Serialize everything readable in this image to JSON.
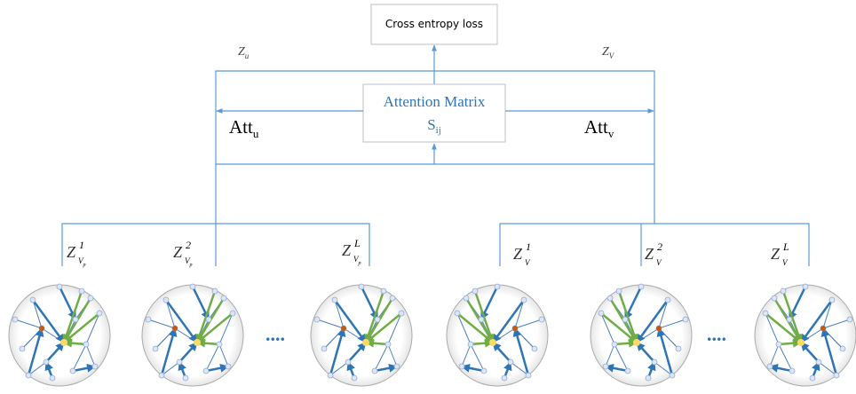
{
  "loss": {
    "label": "Cross entropy loss"
  },
  "attention": {
    "title": "Attention Matrix",
    "symbol": "S",
    "symbol_sub": "ij"
  },
  "att": [
    {
      "base": "Att",
      "sub": "u"
    },
    {
      "base": "Att",
      "sub": "v"
    }
  ],
  "outputs": [
    {
      "base": "Z",
      "sub": "u"
    },
    {
      "base": "Z",
      "sub": "V"
    }
  ],
  "layers": [
    {
      "base": "Z",
      "sup": "1",
      "sub": "V",
      "subsub": "p"
    },
    {
      "base": "Z",
      "sup": "2",
      "sub": "V",
      "subsub": "p"
    },
    {
      "base": "Z",
      "sup": "L",
      "sub": "V",
      "subsub": "p"
    },
    {
      "base": "Z",
      "sup": "1",
      "sub": "V"
    },
    {
      "base": "Z",
      "sup": "2",
      "sub": "V"
    },
    {
      "base": "Z",
      "sup": "L",
      "sub": "V"
    }
  ],
  "ellipses": [
    "....",
    "...."
  ]
}
